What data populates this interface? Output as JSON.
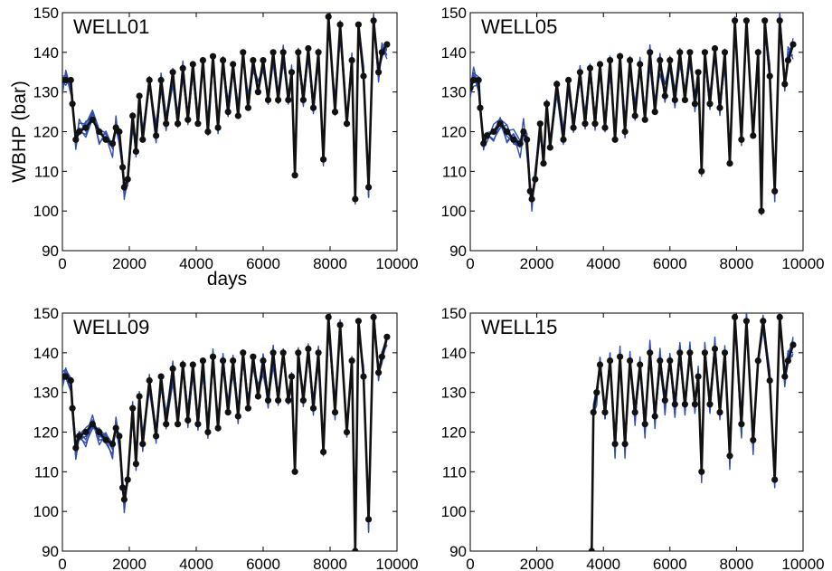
{
  "chart_data": [
    {
      "type": "line",
      "title": "WELL01",
      "xlabel": "days",
      "ylabel": "WBHP (bar)",
      "xlim": [
        0,
        10000
      ],
      "ylim": [
        90,
        150
      ],
      "xticks": [
        "0",
        "2000",
        "4000",
        "6000",
        "8000",
        "10000"
      ],
      "yticks": [
        "90",
        "100",
        "110",
        "120",
        "130",
        "140",
        "150"
      ],
      "grid": false,
      "colors": {
        "ensemble": "#2f4fb5",
        "observed": "#111111"
      },
      "series": [
        {
          "values": [
            [
              0,
              133
            ],
            [
              100,
              133
            ],
            [
              250,
              133
            ],
            [
              300,
              127
            ],
            [
              400,
              118
            ],
            [
              500,
              120
            ],
            [
              700,
              121
            ],
            [
              900,
              123
            ],
            [
              1100,
              120
            ],
            [
              1300,
              118
            ],
            [
              1500,
              117
            ],
            [
              1600,
              121
            ],
            [
              1700,
              120
            ],
            [
              1800,
              111
            ],
            [
              1850,
              106
            ],
            [
              1950,
              108
            ],
            [
              2100,
              124
            ],
            [
              2200,
              115
            ],
            [
              2300,
              129
            ],
            [
              2400,
              118
            ],
            [
              2600,
              133
            ],
            [
              2800,
              119
            ],
            [
              2950,
              133
            ],
            [
              3100,
              122
            ],
            [
              3300,
              135
            ],
            [
              3450,
              122
            ],
            [
              3600,
              136
            ],
            [
              3750,
              123
            ],
            [
              3900,
              137
            ],
            [
              4050,
              122
            ],
            [
              4200,
              138
            ],
            [
              4350,
              120
            ],
            [
              4500,
              139
            ],
            [
              4650,
              121
            ],
            [
              4800,
              138
            ],
            [
              4950,
              125
            ],
            [
              5100,
              137
            ],
            [
              5250,
              124
            ],
            [
              5400,
              140
            ],
            [
              5550,
              126
            ],
            [
              5700,
              138
            ],
            [
              5850,
              130
            ],
            [
              6000,
              138
            ],
            [
              6150,
              128
            ],
            [
              6300,
              140
            ],
            [
              6450,
              128
            ],
            [
              6600,
              140
            ],
            [
              6750,
              128
            ],
            [
              6850,
              135
            ],
            [
              6950,
              109
            ],
            [
              7050,
              140
            ],
            [
              7200,
              128
            ],
            [
              7350,
              141
            ],
            [
              7500,
              126
            ],
            [
              7650,
              140
            ],
            [
              7800,
              113
            ],
            [
              7950,
              149
            ],
            [
              8150,
              125
            ],
            [
              8300,
              147
            ],
            [
              8500,
              122
            ],
            [
              8650,
              138
            ],
            [
              8750,
              103
            ],
            [
              8850,
              147
            ],
            [
              9000,
              134
            ],
            [
              9150,
              106
            ],
            [
              9300,
              148
            ],
            [
              9450,
              135
            ],
            [
              9550,
              140
            ],
            [
              9700,
              142
            ]
          ]
        }
      ]
    },
    {
      "type": "line",
      "title": "WELL05",
      "xlabel": "",
      "ylabel": "",
      "xlim": [
        0,
        10000
      ],
      "ylim": [
        90,
        150
      ],
      "xticks": [
        "0",
        "2000",
        "4000",
        "6000",
        "8000",
        "10000"
      ],
      "yticks": [
        "90",
        "100",
        "110",
        "120",
        "130",
        "140",
        "150"
      ],
      "grid": false,
      "series": [
        {
          "values": [
            [
              0,
              131
            ],
            [
              100,
              133
            ],
            [
              250,
              133
            ],
            [
              300,
              126
            ],
            [
              400,
              117
            ],
            [
              500,
              119
            ],
            [
              700,
              120
            ],
            [
              900,
              122
            ],
            [
              1100,
              120
            ],
            [
              1300,
              118
            ],
            [
              1500,
              117
            ],
            [
              1600,
              120
            ],
            [
              1700,
              118
            ],
            [
              1800,
              105
            ],
            [
              1850,
              103
            ],
            [
              1950,
              108
            ],
            [
              2100,
              122
            ],
            [
              2200,
              112
            ],
            [
              2300,
              127
            ],
            [
              2400,
              116
            ],
            [
              2600,
              132
            ],
            [
              2800,
              118
            ],
            [
              2950,
              133
            ],
            [
              3100,
              121
            ],
            [
              3300,
              135
            ],
            [
              3450,
              122
            ],
            [
              3600,
              136
            ],
            [
              3750,
              122
            ],
            [
              3900,
              137
            ],
            [
              4050,
              121
            ],
            [
              4200,
              138
            ],
            [
              4350,
              118
            ],
            [
              4500,
              139
            ],
            [
              4650,
              120
            ],
            [
              4800,
              138
            ],
            [
              4950,
              124
            ],
            [
              5100,
              137
            ],
            [
              5250,
              123
            ],
            [
              5400,
              140
            ],
            [
              5550,
              125
            ],
            [
              5700,
              138
            ],
            [
              5850,
              129
            ],
            [
              6000,
              138
            ],
            [
              6150,
              128
            ],
            [
              6300,
              140
            ],
            [
              6450,
              128
            ],
            [
              6600,
              140
            ],
            [
              6750,
              127
            ],
            [
              6850,
              135
            ],
            [
              6950,
              110
            ],
            [
              7050,
              140
            ],
            [
              7200,
              127
            ],
            [
              7350,
              141
            ],
            [
              7500,
              126
            ],
            [
              7650,
              140
            ],
            [
              7800,
              112
            ],
            [
              7950,
              148
            ],
            [
              8150,
              118
            ],
            [
              8300,
              148
            ],
            [
              8500,
              119
            ],
            [
              8650,
              140
            ],
            [
              8750,
              100
            ],
            [
              8850,
              148
            ],
            [
              9000,
              134
            ],
            [
              9150,
              105
            ],
            [
              9300,
              148
            ],
            [
              9450,
              132
            ],
            [
              9550,
              138
            ],
            [
              9700,
              142
            ]
          ]
        }
      ]
    },
    {
      "type": "line",
      "title": "WELL09",
      "xlabel": "",
      "ylabel": "",
      "xlim": [
        0,
        10000
      ],
      "ylim": [
        90,
        150
      ],
      "xticks": [
        "0",
        "2000",
        "4000",
        "6000",
        "8000",
        "10000"
      ],
      "yticks": [
        "90",
        "100",
        "110",
        "120",
        "130",
        "140",
        "150"
      ],
      "grid": false,
      "series": [
        {
          "values": [
            [
              0,
              134
            ],
            [
              100,
              134
            ],
            [
              250,
              133
            ],
            [
              300,
              126
            ],
            [
              400,
              116
            ],
            [
              500,
              119
            ],
            [
              700,
              120
            ],
            [
              900,
              122
            ],
            [
              1100,
              120
            ],
            [
              1300,
              118
            ],
            [
              1500,
              117
            ],
            [
              1600,
              121
            ],
            [
              1700,
              119
            ],
            [
              1800,
              106
            ],
            [
              1850,
              103
            ],
            [
              1950,
              108
            ],
            [
              2100,
              126
            ],
            [
              2200,
              112
            ],
            [
              2300,
              129
            ],
            [
              2400,
              117
            ],
            [
              2600,
              133
            ],
            [
              2800,
              119
            ],
            [
              2950,
              134
            ],
            [
              3100,
              122
            ],
            [
              3300,
              136
            ],
            [
              3450,
              122
            ],
            [
              3600,
              137
            ],
            [
              3750,
              123
            ],
            [
              3900,
              137
            ],
            [
              4050,
              122
            ],
            [
              4200,
              138
            ],
            [
              4350,
              120
            ],
            [
              4500,
              139
            ],
            [
              4650,
              121
            ],
            [
              4800,
              138
            ],
            [
              4950,
              125
            ],
            [
              5100,
              138
            ],
            [
              5250,
              124
            ],
            [
              5400,
              140
            ],
            [
              5550,
              126
            ],
            [
              5700,
              139
            ],
            [
              5850,
              129
            ],
            [
              6000,
              138
            ],
            [
              6150,
              128
            ],
            [
              6300,
              140
            ],
            [
              6450,
              128
            ],
            [
              6600,
              140
            ],
            [
              6750,
              128
            ],
            [
              6850,
              134
            ],
            [
              6950,
              110
            ],
            [
              7050,
              140
            ],
            [
              7200,
              128
            ],
            [
              7350,
              141
            ],
            [
              7500,
              126
            ],
            [
              7650,
              140
            ],
            [
              7800,
              115
            ],
            [
              7950,
              149
            ],
            [
              8150,
              125
            ],
            [
              8300,
              147
            ],
            [
              8500,
              120
            ],
            [
              8650,
              138
            ],
            [
              8750,
              90
            ],
            [
              8850,
              148
            ],
            [
              9000,
              134
            ],
            [
              9150,
              98
            ],
            [
              9300,
              149
            ],
            [
              9450,
              135
            ],
            [
              9550,
              139
            ],
            [
              9700,
              144
            ]
          ]
        }
      ]
    },
    {
      "type": "line",
      "title": "WELL15",
      "xlabel": "",
      "ylabel": "",
      "xlim": [
        0,
        10000
      ],
      "ylim": [
        90,
        150
      ],
      "xticks": [
        "0",
        "2000",
        "4000",
        "6000",
        "8000",
        "10000"
      ],
      "yticks": [
        "90",
        "100",
        "110",
        "120",
        "130",
        "140",
        "150"
      ],
      "grid": false,
      "series": [
        {
          "values": [
            [
              3650,
              90
            ],
            [
              3700,
              125
            ],
            [
              3800,
              130
            ],
            [
              3900,
              137
            ],
            [
              4050,
              125
            ],
            [
              4200,
              138
            ],
            [
              4350,
              117
            ],
            [
              4500,
              139
            ],
            [
              4650,
              117
            ],
            [
              4800,
              138
            ],
            [
              4950,
              125
            ],
            [
              5100,
              137
            ],
            [
              5250,
              122
            ],
            [
              5400,
              140
            ],
            [
              5550,
              124
            ],
            [
              5700,
              138
            ],
            [
              5850,
              128
            ],
            [
              6000,
              138
            ],
            [
              6150,
              127
            ],
            [
              6300,
              140
            ],
            [
              6450,
              127
            ],
            [
              6600,
              140
            ],
            [
              6750,
              127
            ],
            [
              6850,
              134
            ],
            [
              6950,
              110
            ],
            [
              7050,
              140
            ],
            [
              7200,
              127
            ],
            [
              7350,
              141
            ],
            [
              7500,
              125
            ],
            [
              7650,
              140
            ],
            [
              7800,
              114
            ],
            [
              7950,
              149
            ],
            [
              8150,
              122
            ],
            [
              8300,
              148
            ],
            [
              8500,
              118
            ],
            [
              8650,
              138
            ],
            [
              8800,
              148
            ],
            [
              9000,
              133
            ],
            [
              9150,
              108
            ],
            [
              9300,
              149
            ],
            [
              9450,
              134
            ],
            [
              9550,
              138
            ],
            [
              9700,
              142
            ]
          ]
        }
      ]
    }
  ]
}
